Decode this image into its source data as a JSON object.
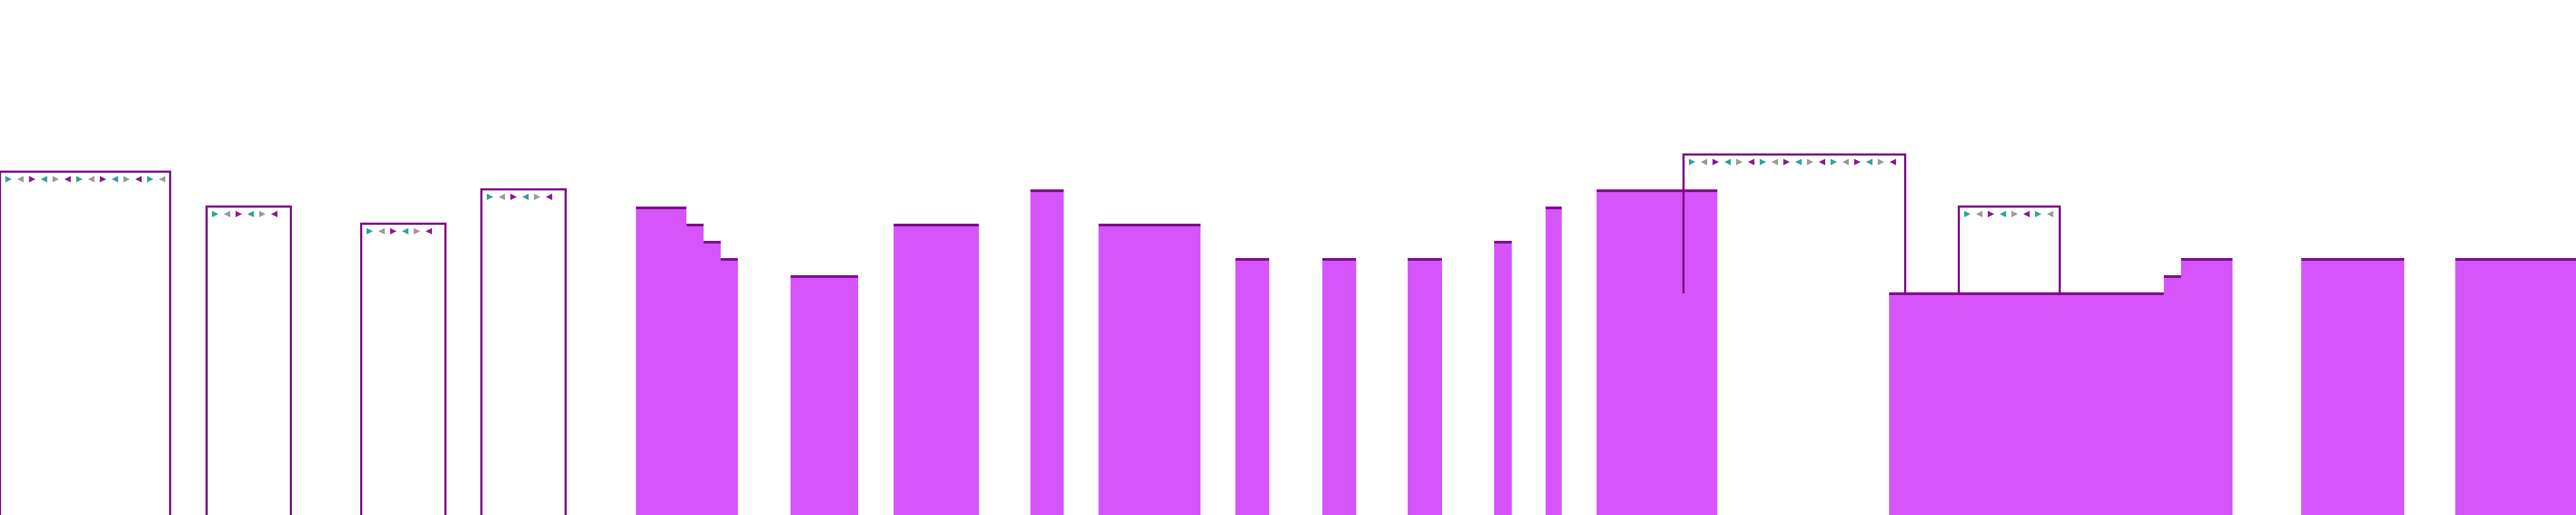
{
  "scene": {
    "kind": "side-scrolling platform level silhouette",
    "background_color": "#ffffff",
    "colors": {
      "block_fill": "#d655fa",
      "block_edge": "#7b0f86",
      "bunting_pennant_teal": "#2fa39a",
      "bunting_pennant_gray": "#9a9a9a",
      "bunting_pennant_magenta": "#8b1a8e"
    },
    "elements": {
      "solid_blocks": 15,
      "stepped_blocks": 2,
      "outlined_gates_with_bunting": 6
    },
    "icons": [
      "bunting-pennant-icon"
    ]
  }
}
